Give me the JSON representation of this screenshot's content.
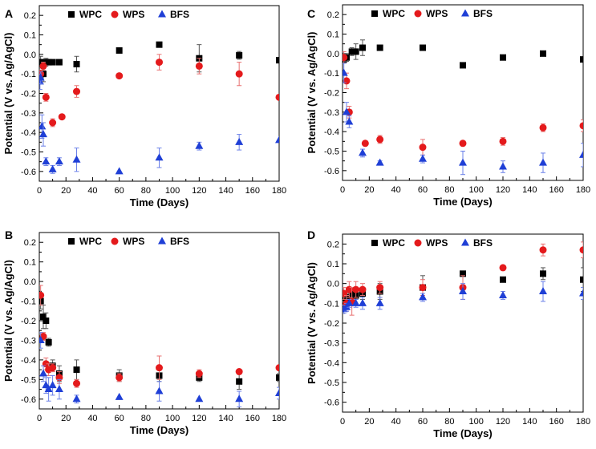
{
  "colors": {
    "WPC": "#000000",
    "WPS": "#e41a1c",
    "BFS": "#1f3fd6",
    "err_WPC": "#555555",
    "err_WPS": "#e87070",
    "err_BFS": "#6b80e8"
  },
  "chart_data": [
    {
      "type": "scatter",
      "panel": "A",
      "title": "",
      "xlabel": "Time (Days)",
      "ylabel": "Potential (V vs. Ag/AgCl)",
      "xlim": [
        0,
        180
      ],
      "ylim": [
        -0.65,
        0.25
      ],
      "xticks": [
        0,
        20,
        40,
        60,
        80,
        100,
        120,
        140,
        160,
        180
      ],
      "yticks": [
        0.2,
        0.1,
        0.0,
        -0.1,
        -0.2,
        -0.3,
        -0.4,
        -0.5,
        -0.6
      ],
      "legend": "top-left",
      "series": [
        {
          "name": "WPC",
          "marker": "square",
          "x": [
            1,
            3,
            5,
            7,
            10,
            15,
            28,
            60,
            90,
            120,
            150,
            180
          ],
          "y": [
            -0.04,
            -0.1,
            -0.04,
            -0.04,
            -0.04,
            -0.04,
            -0.05,
            0.02,
            0.05,
            -0.02,
            -0.005,
            -0.03
          ],
          "err": [
            0.03,
            0.04,
            0.02,
            0.01,
            0.01,
            0.01,
            0.04,
            0.01,
            0.01,
            0.07,
            0.02,
            0.0
          ]
        },
        {
          "name": "WPS",
          "marker": "circle",
          "x": [
            1,
            3,
            5,
            10,
            17,
            28,
            60,
            90,
            120,
            150,
            180
          ],
          "y": [
            -0.1,
            -0.06,
            -0.22,
            -0.35,
            -0.32,
            -0.19,
            -0.11,
            -0.04,
            -0.06,
            -0.1,
            -0.22
          ],
          "err": [
            0.02,
            0.02,
            0.02,
            0.02,
            0.01,
            0.03,
            0.0,
            0.04,
            0.04,
            0.06,
            0.0
          ]
        },
        {
          "name": "BFS",
          "marker": "triangle",
          "x": [
            0.5,
            1,
            2,
            3,
            5,
            10,
            15,
            28,
            60,
            90,
            120,
            150,
            180
          ],
          "y": [
            -0.14,
            -0.12,
            -0.37,
            -0.41,
            -0.55,
            -0.59,
            -0.55,
            -0.54,
            -0.6,
            -0.53,
            -0.47,
            -0.45,
            -0.44
          ],
          "err": [
            0.04,
            0.03,
            0.06,
            0.06,
            0.02,
            0.02,
            0.02,
            0.06,
            0.0,
            0.05,
            0.02,
            0.04,
            0.0
          ]
        }
      ]
    },
    {
      "type": "scatter",
      "panel": "B",
      "title": "",
      "xlabel": "Time (Days)",
      "ylabel": "Potential (V vs. Ag/AgCl)",
      "xlim": [
        0,
        180
      ],
      "ylim": [
        -0.65,
        0.25
      ],
      "xticks": [
        0,
        20,
        40,
        60,
        80,
        100,
        120,
        140,
        160,
        180
      ],
      "yticks": [
        0.2,
        0.1,
        0.0,
        -0.1,
        -0.2,
        -0.3,
        -0.4,
        -0.5,
        -0.6
      ],
      "legend": "top-left",
      "series": [
        {
          "name": "WPC",
          "marker": "square",
          "x": [
            1,
            3,
            5,
            7,
            10,
            15,
            28,
            60,
            90,
            120,
            150,
            180
          ],
          "y": [
            -0.1,
            -0.18,
            -0.2,
            -0.31,
            -0.43,
            -0.47,
            -0.45,
            -0.48,
            -0.48,
            -0.49,
            -0.51,
            -0.49
          ],
          "err": [
            0.04,
            0.06,
            0.04,
            0.02,
            0.03,
            0.04,
            0.05,
            0.03,
            0.03,
            0.02,
            0.04,
            0.02
          ]
        },
        {
          "name": "WPS",
          "marker": "circle",
          "x": [
            1,
            3,
            5,
            7,
            10,
            15,
            28,
            60,
            90,
            120,
            150,
            180
          ],
          "y": [
            -0.07,
            -0.28,
            -0.42,
            -0.45,
            -0.44,
            -0.49,
            -0.52,
            -0.49,
            -0.44,
            -0.47,
            -0.46,
            -0.44
          ],
          "err": [
            0.05,
            0.02,
            0.03,
            0.03,
            0.02,
            0.03,
            0.02,
            0.02,
            0.06,
            0.02,
            0.0,
            0.0
          ]
        },
        {
          "name": "BFS",
          "marker": "triangle",
          "x": [
            1,
            3,
            5,
            7,
            10,
            15,
            28,
            60,
            90,
            120,
            150,
            180
          ],
          "y": [
            -0.3,
            -0.47,
            -0.53,
            -0.55,
            -0.53,
            -0.55,
            -0.6,
            -0.59,
            -0.56,
            -0.6,
            -0.6,
            -0.57
          ],
          "err": [
            0.04,
            0.04,
            0.04,
            0.06,
            0.05,
            0.05,
            0.02,
            0.0,
            0.05,
            0.0,
            0.04,
            0.03
          ]
        }
      ]
    },
    {
      "type": "scatter",
      "panel": "C",
      "title": "",
      "xlabel": "Time (Days)",
      "ylabel": "Potential (V vs. Ag/AgCl)",
      "xlim": [
        0,
        180
      ],
      "ylim": [
        -0.65,
        0.25
      ],
      "xticks": [
        0,
        20,
        40,
        60,
        80,
        100,
        120,
        140,
        160,
        180
      ],
      "yticks": [
        0.2,
        0.1,
        0.0,
        -0.1,
        -0.2,
        -0.3,
        -0.4,
        -0.5,
        -0.6
      ],
      "legend": "top-left",
      "series": [
        {
          "name": "WPC",
          "marker": "square",
          "x": [
            1,
            3,
            7,
            10,
            15,
            28,
            60,
            90,
            120,
            150,
            180
          ],
          "y": [
            -0.03,
            -0.02,
            0.01,
            0.01,
            0.03,
            0.03,
            0.03,
            -0.06,
            -0.02,
            0.0,
            -0.03
          ],
          "err": [
            0.02,
            0.02,
            0.02,
            0.04,
            0.04,
            0.0,
            0.0,
            0.0,
            0.0,
            0.0,
            0.0
          ]
        },
        {
          "name": "WPS",
          "marker": "circle",
          "x": [
            1,
            3,
            5,
            17,
            28,
            60,
            90,
            120,
            150,
            180
          ],
          "y": [
            -0.02,
            -0.14,
            -0.3,
            -0.46,
            -0.44,
            -0.48,
            -0.46,
            -0.45,
            -0.38,
            -0.37
          ],
          "err": [
            0.03,
            0.04,
            0.03,
            0.0,
            0.02,
            0.04,
            0.0,
            0.02,
            0.02,
            0.03
          ]
        },
        {
          "name": "BFS",
          "marker": "triangle",
          "x": [
            1,
            3,
            5,
            15,
            28,
            60,
            90,
            120,
            150,
            180
          ],
          "y": [
            -0.1,
            -0.3,
            -0.35,
            -0.51,
            -0.56,
            -0.54,
            -0.56,
            -0.58,
            -0.56,
            -0.52
          ],
          "err": [
            0.05,
            0.05,
            0.03,
            0.02,
            0.01,
            0.02,
            0.06,
            0.03,
            0.05,
            0.06
          ]
        }
      ]
    },
    {
      "type": "scatter",
      "panel": "D",
      "title": "",
      "xlabel": "Time (Days)",
      "ylabel": "Potential (V vs. Ag/AgCl)",
      "xlim": [
        0,
        180
      ],
      "ylim": [
        -0.65,
        0.25
      ],
      "xticks": [
        0,
        20,
        40,
        60,
        80,
        100,
        120,
        140,
        160,
        180
      ],
      "yticks": [
        0.2,
        0.1,
        0.0,
        -0.1,
        -0.2,
        -0.3,
        -0.4,
        -0.5,
        -0.6
      ],
      "legend": "top-left",
      "series": [
        {
          "name": "WPC",
          "marker": "square",
          "x": [
            1,
            3,
            5,
            7,
            10,
            15,
            28,
            60,
            90,
            120,
            150,
            180
          ],
          "y": [
            -0.07,
            -0.1,
            -0.07,
            -0.05,
            -0.06,
            -0.05,
            -0.04,
            -0.02,
            0.05,
            0.02,
            0.05,
            0.02
          ],
          "err": [
            0.02,
            0.03,
            0.02,
            0.02,
            0.02,
            0.03,
            0.04,
            0.06,
            0.0,
            0.0,
            0.03,
            0.06
          ]
        },
        {
          "name": "WPS",
          "marker": "circle",
          "x": [
            1,
            3,
            5,
            7,
            10,
            15,
            28,
            60,
            90,
            120,
            150,
            180
          ],
          "y": [
            -0.05,
            -0.1,
            -0.03,
            -0.09,
            -0.03,
            -0.03,
            -0.02,
            -0.02,
            -0.02,
            0.08,
            0.17,
            0.17
          ],
          "err": [
            0.03,
            0.04,
            0.04,
            0.07,
            0.04,
            0.03,
            0.03,
            0.04,
            0.06,
            0.0,
            0.03,
            0.04
          ]
        },
        {
          "name": "BFS",
          "marker": "triangle",
          "x": [
            1,
            3,
            5,
            10,
            15,
            28,
            60,
            90,
            120,
            150,
            180
          ],
          "y": [
            -0.13,
            -0.12,
            -0.1,
            -0.1,
            -0.1,
            -0.1,
            -0.07,
            -0.04,
            -0.06,
            -0.04,
            -0.05
          ],
          "err": [
            0.02,
            0.02,
            0.02,
            0.02,
            0.03,
            0.03,
            0.02,
            0.04,
            0.02,
            0.05,
            0.03
          ]
        }
      ]
    }
  ]
}
